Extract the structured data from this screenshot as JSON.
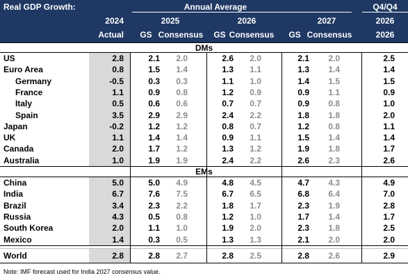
{
  "header": {
    "title": "Real GDP Growth:",
    "annual_average": "Annual Average",
    "q4q4": "Q4/Q4",
    "years": [
      "2024",
      "2025",
      "2026",
      "2027",
      "2026"
    ],
    "col_actual": "Actual",
    "col_gs": "GS",
    "col_consensus": "Consensus"
  },
  "sections": {
    "dms": "DMs",
    "ems": "EMs"
  },
  "dm_rows": [
    {
      "name": "US",
      "actual": "2.8",
      "gs25": "2.1",
      "con25": "2.0",
      "gs26": "2.6",
      "con26": "2.0",
      "gs27": "2.1",
      "con27": "2.0",
      "q4": "2.5"
    },
    {
      "name": "Euro Area",
      "actual": "0.8",
      "gs25": "1.5",
      "con25": "1.4",
      "gs26": "1.3",
      "con26": "1.1",
      "gs27": "1.3",
      "con27": "1.4",
      "q4": "1.4"
    },
    {
      "name": "Germany",
      "actual": "-0.5",
      "gs25": "0.3",
      "con25": "0.3",
      "gs26": "1.1",
      "con26": "1.0",
      "gs27": "1.4",
      "con27": "1.5",
      "q4": "1.5"
    },
    {
      "name": "France",
      "actual": "1.1",
      "gs25": "0.9",
      "con25": "0.8",
      "gs26": "1.2",
      "con26": "0.9",
      "gs27": "0.9",
      "con27": "1.1",
      "q4": "0.9"
    },
    {
      "name": "Italy",
      "actual": "0.5",
      "gs25": "0.6",
      "con25": "0.6",
      "gs26": "0.7",
      "con26": "0.7",
      "gs27": "0.9",
      "con27": "0.8",
      "q4": "1.0"
    },
    {
      "name": "Spain",
      "actual": "3.5",
      "gs25": "2.9",
      "con25": "2.9",
      "gs26": "2.4",
      "con26": "2.2",
      "gs27": "1.8",
      "con27": "1.8",
      "q4": "2.0"
    },
    {
      "name": "Japan",
      "actual": "-0.2",
      "gs25": "1.2",
      "con25": "1.2",
      "gs26": "0.8",
      "con26": "0.7",
      "gs27": "1.2",
      "con27": "0.8",
      "q4": "1.1"
    },
    {
      "name": "UK",
      "actual": "1.1",
      "gs25": "1.4",
      "con25": "1.4",
      "gs26": "0.9",
      "con26": "1.1",
      "gs27": "1.5",
      "con27": "1.4",
      "q4": "1.4"
    },
    {
      "name": "Canada",
      "actual": "2.0",
      "gs25": "1.7",
      "con25": "1.2",
      "gs26": "1.3",
      "con26": "1.2",
      "gs27": "1.9",
      "con27": "1.8",
      "q4": "1.7"
    },
    {
      "name": "Australia",
      "actual": "1.0",
      "gs25": "1.9",
      "con25": "1.9",
      "gs26": "2.4",
      "con26": "2.2",
      "gs27": "2.6",
      "con27": "2.3",
      "q4": "2.6"
    }
  ],
  "em_rows": [
    {
      "name": "China",
      "actual": "5.0",
      "gs25": "5.0",
      "con25": "4.9",
      "gs26": "4.8",
      "con26": "4.5",
      "gs27": "4.7",
      "con27": "4.3",
      "q4": "4.9"
    },
    {
      "name": "India",
      "actual": "6.7",
      "gs25": "7.6",
      "con25": "7.5",
      "gs26": "6.7",
      "con26": "6.5",
      "gs27": "6.8",
      "con27": "6.4",
      "q4": "7.0"
    },
    {
      "name": "Brazil",
      "actual": "3.4",
      "gs25": "2.3",
      "con25": "2.2",
      "gs26": "1.8",
      "con26": "1.7",
      "gs27": "2.3",
      "con27": "1.9",
      "q4": "2.8"
    },
    {
      "name": "Russia",
      "actual": "4.3",
      "gs25": "0.5",
      "con25": "0.8",
      "gs26": "1.2",
      "con26": "1.0",
      "gs27": "1.7",
      "con27": "1.4",
      "q4": "1.7"
    },
    {
      "name": "South Korea",
      "actual": "2.0",
      "gs25": "1.1",
      "con25": "1.0",
      "gs26": "1.9",
      "con26": "2.0",
      "gs27": "2.3",
      "con27": "1.8",
      "q4": "2.5"
    },
    {
      "name": "Mexico",
      "actual": "1.4",
      "gs25": "0.3",
      "con25": "0.5",
      "gs26": "1.3",
      "con26": "1.3",
      "gs27": "2.1",
      "con27": "2.0",
      "q4": "2.0"
    }
  ],
  "world_row": {
    "name": "World",
    "actual": "2.8",
    "gs25": "2.8",
    "con25": "2.7",
    "gs26": "2.8",
    "con26": "2.5",
    "gs27": "2.8",
    "con27": "2.6",
    "q4": "2.9"
  },
  "note": "Note: IMF forecast used for India 2027 consensus value.",
  "colors": {
    "header_bg": "#1f3864",
    "shade": "#d9d9d9",
    "consensus_text": "#8c8c8c"
  }
}
